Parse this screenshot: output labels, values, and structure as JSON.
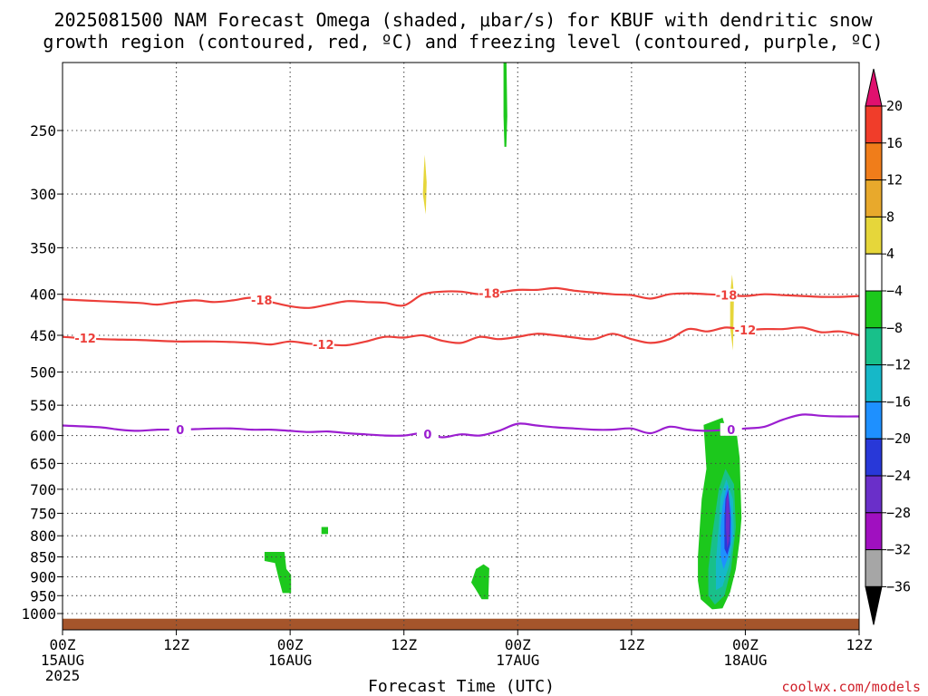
{
  "chart_data": {
    "type": "heatmap",
    "title_line1": "2025081500 NAM Forecast Omega (shaded, μbar/s) for KBUF with dendritic snow",
    "title_line2": "growth region (contoured, red, ºC) and freezing level (contoured, purple, ºC)",
    "xlabel": "Forecast Time (UTC)",
    "x_range_hours": [
      0,
      84
    ],
    "x_ticks": [
      {
        "hour": 0,
        "lines": [
          "00Z",
          "15AUG",
          "2025"
        ]
      },
      {
        "hour": 12,
        "lines": [
          "12Z"
        ]
      },
      {
        "hour": 24,
        "lines": [
          "00Z",
          "16AUG"
        ]
      },
      {
        "hour": 36,
        "lines": [
          "12Z"
        ]
      },
      {
        "hour": 48,
        "lines": [
          "00Z",
          "17AUG"
        ]
      },
      {
        "hour": 60,
        "lines": [
          "12Z"
        ]
      },
      {
        "hour": 72,
        "lines": [
          "00Z",
          "18AUG"
        ]
      },
      {
        "hour": 84,
        "lines": [
          "12Z"
        ]
      }
    ],
    "y_axis": "pressure (mb), log scale, inverted",
    "y_range_mb": [
      1040,
      200
    ],
    "y_ticks": [
      250,
      300,
      350,
      400,
      450,
      500,
      550,
      600,
      650,
      700,
      750,
      800,
      850,
      900,
      950,
      1000
    ],
    "grid": "dotted",
    "colorbar": {
      "position": "right",
      "ticks": [
        "20",
        "16",
        "12",
        "8",
        "4",
        "−4",
        "−8",
        "−12",
        "−16",
        "−20",
        "−24",
        "−28",
        "−32",
        "−36"
      ],
      "bins": [
        {
          "range": [
            20,
            99
          ],
          "color": "#e0106e"
        },
        {
          "range": [
            16,
            20
          ],
          "color": "#f03d2a"
        },
        {
          "range": [
            12,
            16
          ],
          "color": "#f07d1a"
        },
        {
          "range": [
            8,
            12
          ],
          "color": "#e8a92c"
        },
        {
          "range": [
            4,
            8
          ],
          "color": "#e6d63a"
        },
        {
          "range": [
            -4,
            4
          ],
          "color": "#ffffff"
        },
        {
          "range": [
            -8,
            -4
          ],
          "color": "#1cc81c"
        },
        {
          "range": [
            -12,
            -8
          ],
          "color": "#18c08a"
        },
        {
          "range": [
            -16,
            -12
          ],
          "color": "#16b8c8"
        },
        {
          "range": [
            -20,
            -16
          ],
          "color": "#1e90ff"
        },
        {
          "range": [
            -24,
            -20
          ],
          "color": "#2838d8"
        },
        {
          "range": [
            -28,
            -24
          ],
          "color": "#6a2fc9"
        },
        {
          "range": [
            -32,
            -28
          ],
          "color": "#a010c0"
        },
        {
          "range": [
            -36,
            -32
          ],
          "color": "#a6a6a6"
        },
        {
          "range": [
            -99,
            -36
          ],
          "color": "#000000"
        }
      ]
    },
    "series": [
      {
        "name": "-18",
        "color": "#ec3f3a",
        "labels_at_hours": [
          21,
          45,
          70
        ],
        "hours": [
          0,
          4,
          8,
          10,
          12,
          14,
          16,
          18,
          20,
          22,
          24,
          26,
          28,
          30,
          32,
          34,
          36,
          38,
          40,
          42,
          44,
          46,
          48,
          50,
          52,
          54,
          56,
          58,
          60,
          62,
          64,
          66,
          68,
          70,
          72,
          74,
          76,
          78,
          80,
          82,
          84
        ],
        "pressure_mb": [
          406,
          408,
          410,
          412,
          409,
          407,
          409,
          407,
          404,
          409,
          414,
          416,
          412,
          408,
          409,
          410,
          413,
          400,
          397,
          397,
          400,
          398,
          395,
          395,
          393,
          396,
          398,
          400,
          401,
          405,
          400,
          399,
          400,
          401,
          402,
          400,
          401,
          402,
          403,
          403,
          402
        ]
      },
      {
        "name": "-12",
        "color": "#ec3f3a",
        "labels_at_hours": [
          2.4,
          27.5,
          72
        ],
        "hours": [
          0,
          4,
          8,
          12,
          16,
          20,
          22,
          24,
          26,
          28,
          30,
          32,
          34,
          36,
          38,
          40,
          42,
          44,
          46,
          48,
          50,
          52,
          54,
          56,
          58,
          60,
          62,
          64,
          66,
          68,
          70,
          72,
          74,
          76,
          78,
          80,
          82,
          84
        ],
        "pressure_mb": [
          452,
          455,
          456,
          458,
          458,
          460,
          462,
          458,
          461,
          462,
          463,
          458,
          452,
          453,
          450,
          457,
          460,
          452,
          455,
          452,
          448,
          450,
          453,
          455,
          448,
          455,
          460,
          455,
          442,
          445,
          440,
          443,
          442,
          442,
          440,
          446,
          445,
          450
        ]
      },
      {
        "name": "0",
        "color": "#9b1ed0",
        "labels_at_hours": [
          12.4,
          38.5,
          70.5
        ],
        "hours": [
          0,
          4,
          6,
          8,
          10,
          12,
          14,
          16,
          18,
          20,
          22,
          24,
          26,
          28,
          30,
          32,
          34,
          36,
          38,
          40,
          42,
          44,
          46,
          48,
          50,
          52,
          54,
          56,
          58,
          60,
          62,
          64,
          66,
          68,
          70,
          72,
          74,
          76,
          78,
          80,
          82,
          84
        ],
        "pressure_mb": [
          583,
          586,
          590,
          592,
          590,
          590,
          589,
          588,
          588,
          590,
          590,
          592,
          594,
          593,
          596,
          598,
          600,
          600,
          596,
          603,
          598,
          600,
          592,
          580,
          583,
          586,
          588,
          590,
          590,
          588,
          596,
          585,
          590,
          592,
          590,
          588,
          585,
          573,
          565,
          567,
          568,
          568
        ]
      }
    ],
    "omega_regions": [
      {
        "name": "green-top-left",
        "value": -6,
        "polygon": [
          [
            46.5,
            200
          ],
          [
            46.8,
            200
          ],
          [
            46.9,
            240
          ],
          [
            46.8,
            262
          ],
          [
            46.6,
            262
          ],
          [
            46.5,
            240
          ]
        ]
      },
      {
        "name": "yellow-upper",
        "value": 5,
        "polygon": [
          [
            38.2,
            268
          ],
          [
            38.4,
            290
          ],
          [
            38.3,
            318
          ],
          [
            38.0,
            300
          ],
          [
            38.1,
            280
          ]
        ]
      },
      {
        "name": "yellow-near-18aug",
        "value": 5,
        "polygon": [
          [
            70.6,
            378
          ],
          [
            70.8,
            400
          ],
          [
            70.7,
            470
          ],
          [
            70.4,
            440
          ],
          [
            70.4,
            400
          ]
        ]
      },
      {
        "name": "green-16aug-patch",
        "value": -6,
        "polygon": [
          [
            21.3,
            838
          ],
          [
            23.4,
            838
          ],
          [
            23.6,
            880
          ],
          [
            24.1,
            895
          ],
          [
            24.1,
            943
          ],
          [
            23.2,
            943
          ],
          [
            22.8,
            905
          ],
          [
            22.4,
            865
          ],
          [
            21.3,
            860
          ]
        ]
      },
      {
        "name": "green-small-square",
        "value": -6,
        "polygon": [
          [
            27.3,
            780
          ],
          [
            28.0,
            780
          ],
          [
            28.0,
            796
          ],
          [
            27.3,
            796
          ]
        ]
      },
      {
        "name": "green-17aug-patch",
        "value": -6,
        "polygon": [
          [
            43.6,
            880
          ],
          [
            44.4,
            868
          ],
          [
            45.0,
            878
          ],
          [
            44.9,
            960
          ],
          [
            44.2,
            960
          ],
          [
            43.5,
            930
          ],
          [
            43.1,
            915
          ]
        ]
      },
      {
        "name": "green-18aug-blob",
        "value": -6,
        "polygon": [
          [
            67.6,
            582
          ],
          [
            69.6,
            570
          ],
          [
            69.8,
            580
          ],
          [
            71.0,
            585
          ],
          [
            71.4,
            640
          ],
          [
            71.5,
            700
          ],
          [
            71.6,
            760
          ],
          [
            71.4,
            810
          ],
          [
            71.0,
            880
          ],
          [
            70.4,
            940
          ],
          [
            69.6,
            985
          ],
          [
            68.5,
            988
          ],
          [
            67.3,
            960
          ],
          [
            67.0,
            910
          ],
          [
            67.0,
            850
          ],
          [
            67.2,
            780
          ],
          [
            67.4,
            720
          ],
          [
            67.9,
            660
          ]
        ]
      },
      {
        "name": "teal-18aug",
        "value": -10,
        "polygon": [
          [
            69.2,
            700
          ],
          [
            69.9,
            660
          ],
          [
            70.8,
            690
          ],
          [
            71.0,
            780
          ],
          [
            70.5,
            880
          ],
          [
            69.8,
            950
          ],
          [
            68.8,
            975
          ],
          [
            68.1,
            950
          ],
          [
            68.1,
            880
          ],
          [
            68.5,
            800
          ]
        ]
      },
      {
        "name": "cyan-18aug",
        "value": -14,
        "polygon": [
          [
            69.4,
            715
          ],
          [
            70.0,
            680
          ],
          [
            70.7,
            720
          ],
          [
            70.8,
            800
          ],
          [
            70.3,
            870
          ],
          [
            69.6,
            925
          ],
          [
            68.9,
            935
          ],
          [
            68.9,
            860
          ],
          [
            69.2,
            780
          ]
        ]
      },
      {
        "name": "blue-18aug",
        "value": -18,
        "polygon": [
          [
            69.6,
            735
          ],
          [
            70.1,
            690
          ],
          [
            70.5,
            740
          ],
          [
            70.6,
            800
          ],
          [
            70.2,
            850
          ],
          [
            69.7,
            880
          ],
          [
            69.4,
            850
          ],
          [
            69.4,
            780
          ]
        ]
      },
      {
        "name": "indigo-18aug",
        "value": -22,
        "polygon": [
          [
            69.9,
            720
          ],
          [
            70.2,
            700
          ],
          [
            70.45,
            760
          ],
          [
            70.4,
            820
          ],
          [
            70.1,
            845
          ],
          [
            69.8,
            830
          ],
          [
            69.8,
            760
          ]
        ]
      },
      {
        "name": "purple-18aug",
        "value": -26,
        "polygon": [
          [
            70.0,
            720
          ],
          [
            70.2,
            705
          ],
          [
            70.35,
            760
          ],
          [
            70.3,
            810
          ],
          [
            70.1,
            830
          ],
          [
            69.95,
            780
          ]
        ]
      }
    ],
    "terrain": {
      "color": "#a5552b",
      "surface_mb": 1015
    }
  },
  "credit": "coolwx.com/models"
}
